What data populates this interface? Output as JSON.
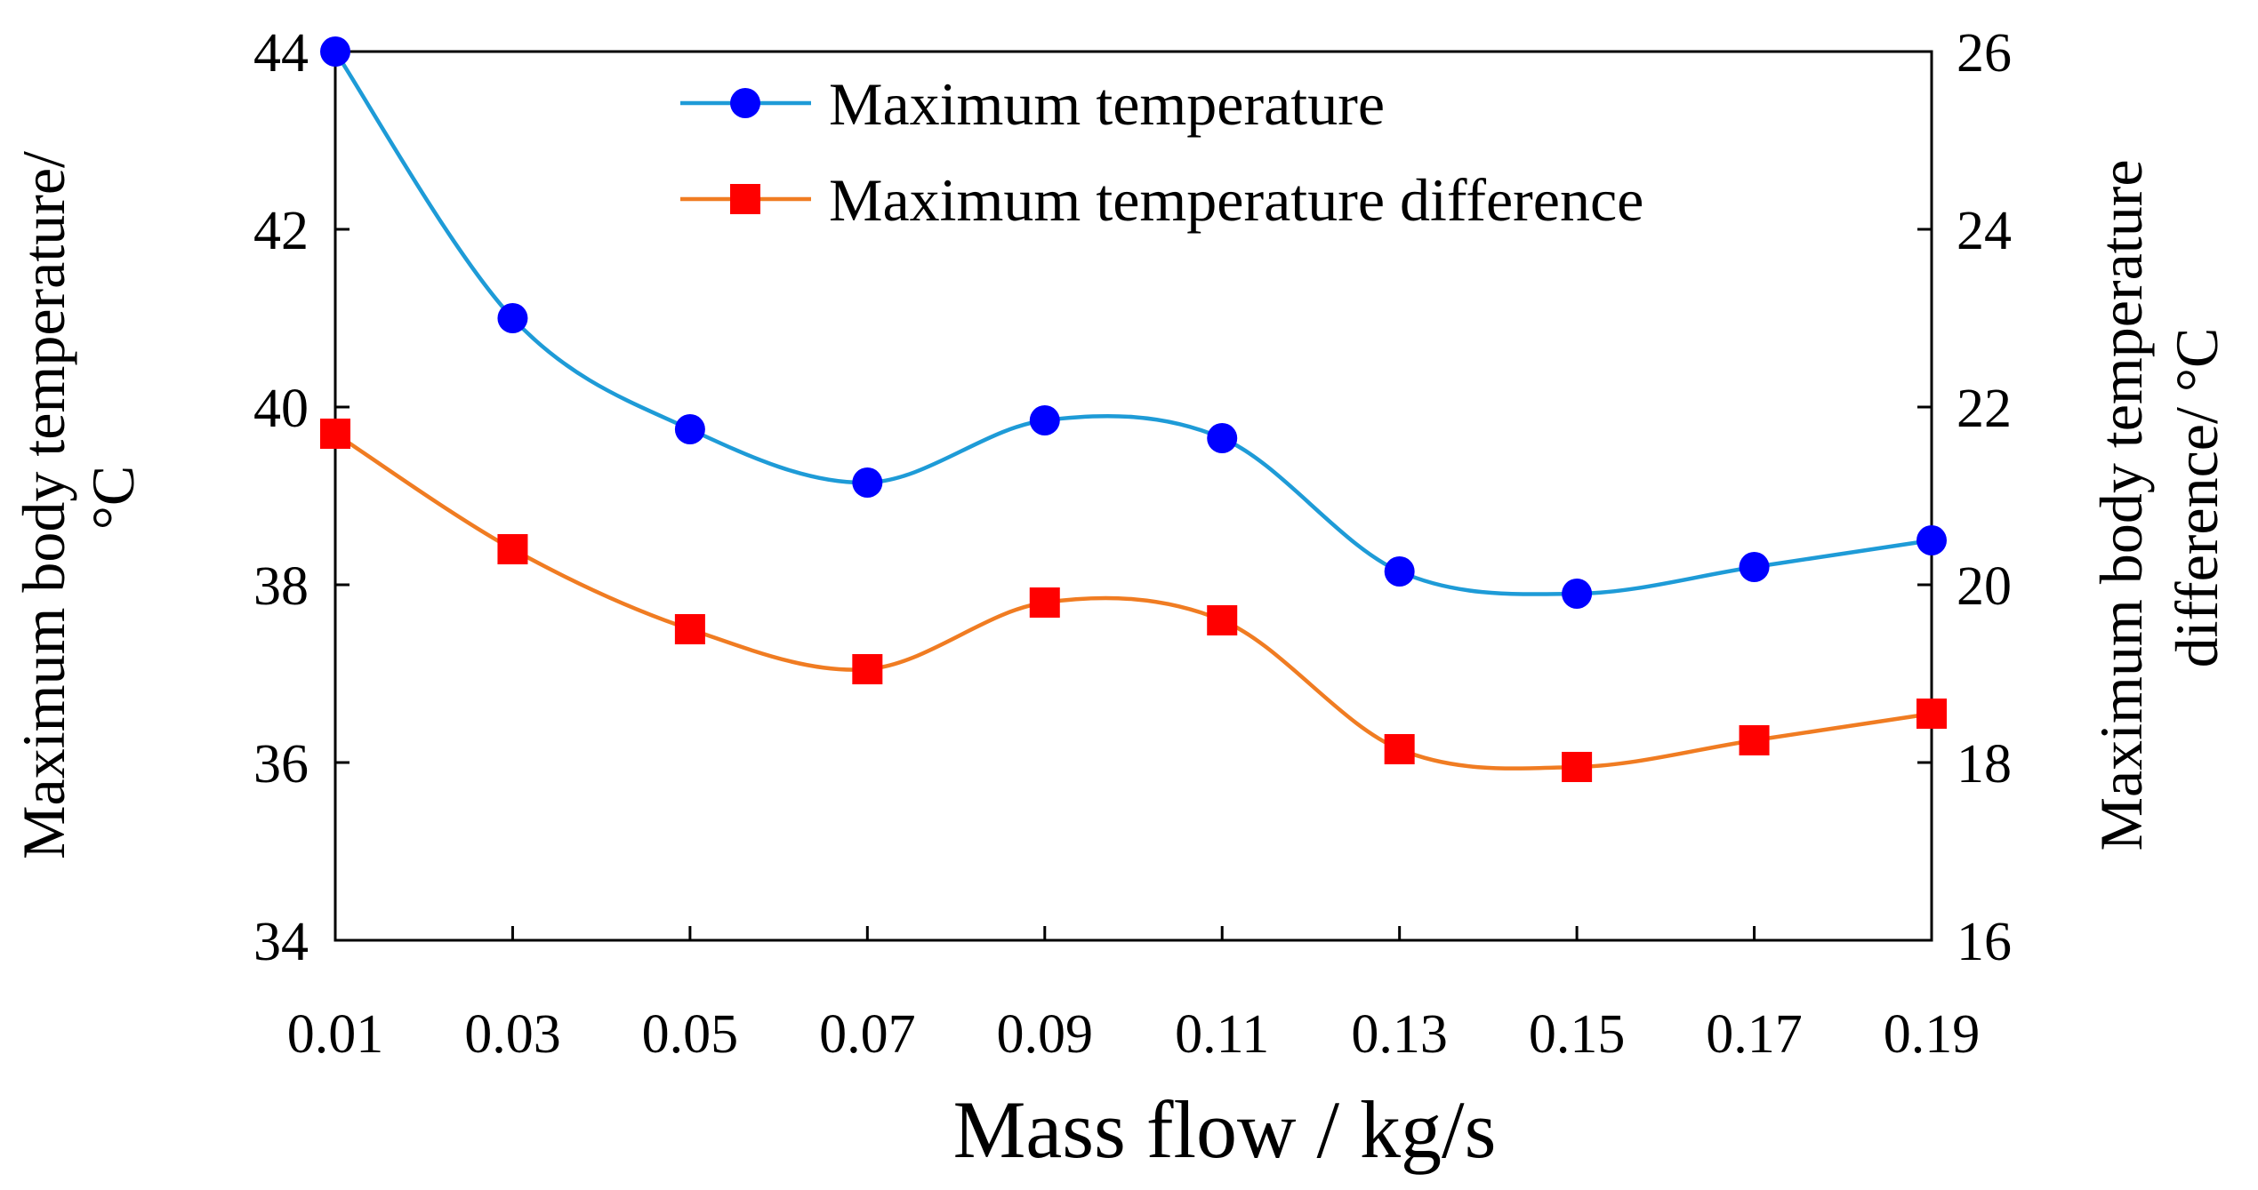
{
  "chart_data": {
    "type": "line",
    "smooth": true,
    "xlabel": "Mass flow / kg/s",
    "ylabel_left": [
      "Maximum body temperature/",
      "°C"
    ],
    "ylabel_right": [
      "Maximum body temperature",
      "difference/ °C"
    ],
    "x": [
      0.01,
      0.03,
      0.05,
      0.07,
      0.09,
      0.11,
      0.13,
      0.15,
      0.17,
      0.19
    ],
    "x_tick_labels": [
      "0.01",
      "0.03",
      "0.05",
      "0.07",
      "0.09",
      "0.11",
      "0.13",
      "0.15",
      "0.17",
      "0.19"
    ],
    "xlim": [
      0.01,
      0.19
    ],
    "ylim_left": [
      34,
      44
    ],
    "y_ticks_left": [
      34,
      36,
      38,
      40,
      42,
      44
    ],
    "ylim_right": [
      16,
      26
    ],
    "y_ticks_right": [
      16,
      18,
      20,
      22,
      24,
      26
    ],
    "grid": false,
    "legend_position": "top-center",
    "series": [
      {
        "name": "Maximum temperature",
        "axis": "left",
        "color": "#1E9BD7",
        "marker": "circle",
        "marker_color": "#0000FF",
        "values": [
          44.0,
          41.0,
          39.75,
          39.15,
          39.85,
          39.65,
          38.15,
          37.9,
          38.2,
          38.5
        ]
      },
      {
        "name": "Maximum temperature difference",
        "axis": "right",
        "color": "#F07C22",
        "marker": "square",
        "marker_color": "#FF0000",
        "values": [
          21.7,
          20.4,
          19.5,
          19.05,
          19.8,
          19.6,
          18.15,
          17.95,
          18.25,
          18.55
        ]
      }
    ]
  }
}
